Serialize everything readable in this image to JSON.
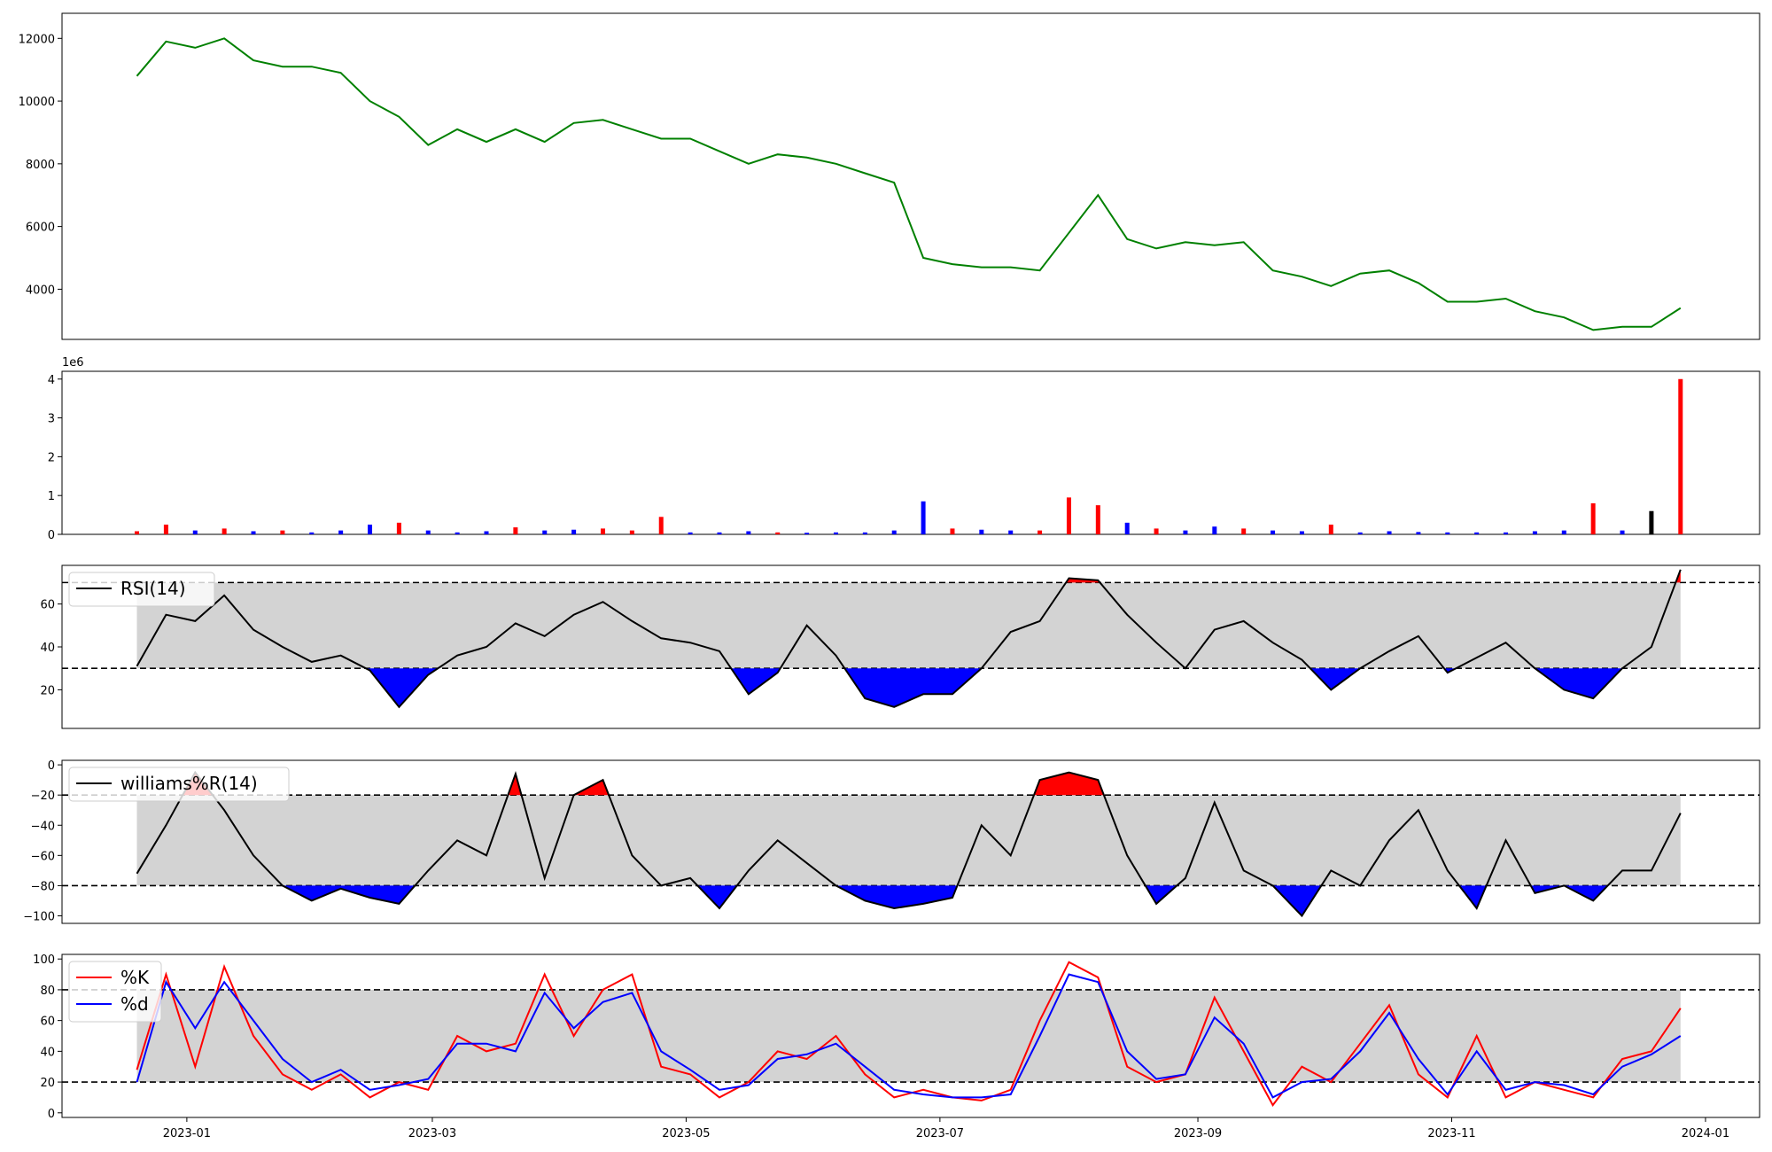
{
  "chart_data": {
    "type": "multi-panel technical chart",
    "x_axis": {
      "tick_labels": [
        "2023-01",
        "2023-03",
        "2023-05",
        "2023-07",
        "2023-09",
        "2023-11",
        "2024-01"
      ],
      "tick_dates": [
        "2023-01-01",
        "2023-03-01",
        "2023-05-01",
        "2023-07-01",
        "2023-09-01",
        "2023-11-01",
        "2024-01-01"
      ],
      "range": [
        "2022-12-02",
        "2024-01-14"
      ]
    },
    "dates": [
      "2022-12-20",
      "2022-12-27",
      "2023-01-03",
      "2023-01-10",
      "2023-01-17",
      "2023-01-24",
      "2023-01-31",
      "2023-02-07",
      "2023-02-14",
      "2023-02-21",
      "2023-02-28",
      "2023-03-07",
      "2023-03-14",
      "2023-03-21",
      "2023-03-28",
      "2023-04-04",
      "2023-04-11",
      "2023-04-18",
      "2023-04-25",
      "2023-05-02",
      "2023-05-09",
      "2023-05-16",
      "2023-05-23",
      "2023-05-30",
      "2023-06-06",
      "2023-06-13",
      "2023-06-20",
      "2023-06-27",
      "2023-07-04",
      "2023-07-11",
      "2023-07-18",
      "2023-07-25",
      "2023-08-01",
      "2023-08-08",
      "2023-08-15",
      "2023-08-22",
      "2023-08-29",
      "2023-09-05",
      "2023-09-12",
      "2023-09-19",
      "2023-09-26",
      "2023-10-03",
      "2023-10-10",
      "2023-10-17",
      "2023-10-24",
      "2023-10-31",
      "2023-11-07",
      "2023-11-14",
      "2023-11-21",
      "2023-11-28",
      "2023-12-05",
      "2023-12-12",
      "2023-12-19",
      "2023-12-26"
    ],
    "panels": [
      {
        "name": "price",
        "line_color": "#008000",
        "y_ticks": [
          4000,
          6000,
          8000,
          10000,
          12000
        ],
        "ylim": [
          2400,
          12800
        ],
        "values": [
          10800,
          11900,
          11700,
          12000,
          11300,
          11100,
          11100,
          10900,
          10000,
          9500,
          8600,
          9100,
          8700,
          9100,
          8700,
          9300,
          9400,
          9100,
          8800,
          8800,
          8400,
          8000,
          8300,
          8200,
          8000,
          7700,
          7400,
          5000,
          4800,
          4700,
          4700,
          4600,
          5800,
          7000,
          5600,
          5300,
          5500,
          5400,
          5500,
          4600,
          4400,
          4100,
          4500,
          4600,
          4200,
          3600,
          3600,
          3700,
          3300,
          3100,
          2700,
          2800,
          2800,
          3400
        ]
      },
      {
        "name": "volume",
        "type": "bar",
        "offset_label": "1e6",
        "y_ticks": [
          0,
          1,
          2,
          3,
          4
        ],
        "ylim": [
          0,
          4.2
        ],
        "colors": {
          "up": "#ff0000",
          "down": "#0000ff",
          "flat": "#000000"
        },
        "values": [
          0.08,
          0.25,
          0.1,
          0.15,
          0.08,
          0.1,
          0.05,
          0.1,
          0.25,
          0.3,
          0.1,
          0.05,
          0.08,
          0.18,
          0.1,
          0.12,
          0.15,
          0.1,
          0.45,
          0.05,
          0.05,
          0.08,
          0.05,
          0.04,
          0.05,
          0.05,
          0.1,
          0.85,
          0.15,
          0.12,
          0.1,
          0.1,
          0.95,
          0.75,
          0.3,
          0.15,
          0.1,
          0.2,
          0.15,
          0.1,
          0.08,
          0.25,
          0.05,
          0.08,
          0.06,
          0.05,
          0.05,
          0.05,
          0.08,
          0.1,
          0.8,
          0.1,
          0.6,
          4.0
        ],
        "directions": [
          "up",
          "up",
          "down",
          "up",
          "down",
          "up",
          "down",
          "down",
          "down",
          "up",
          "down",
          "down",
          "down",
          "up",
          "down",
          "down",
          "up",
          "up",
          "up",
          "down",
          "down",
          "down",
          "up",
          "down",
          "down",
          "down",
          "down",
          "down",
          "up",
          "down",
          "down",
          "up",
          "up",
          "up",
          "down",
          "up",
          "down",
          "down",
          "up",
          "down",
          "down",
          "up",
          "down",
          "down",
          "down",
          "down",
          "down",
          "down",
          "down",
          "down",
          "up",
          "down",
          "flat",
          "up"
        ]
      },
      {
        "name": "rsi",
        "legend": [
          "RSI(14)"
        ],
        "y_ticks": [
          20,
          40,
          60
        ],
        "ylim": [
          2,
          78
        ],
        "upper": 70,
        "lower": 30,
        "values": [
          31,
          55,
          52,
          64,
          48,
          40,
          33,
          36,
          29,
          12,
          27,
          36,
          40,
          51,
          45,
          55,
          61,
          52,
          44,
          42,
          38,
          18,
          28,
          50,
          36,
          16,
          12,
          18,
          18,
          30,
          47,
          52,
          72,
          71,
          55,
          42,
          30,
          48,
          52,
          42,
          34,
          20,
          30,
          38,
          45,
          28,
          35,
          42,
          30,
          20,
          16,
          30,
          40,
          76
        ]
      },
      {
        "name": "williams",
        "legend": [
          "williams%R(14)"
        ],
        "y_ticks": [
          0,
          -20,
          -40,
          -60,
          -80,
          -100
        ],
        "ylim": [
          -105,
          3
        ],
        "upper": -20,
        "lower": -80,
        "values": [
          -72,
          -40,
          -5,
          -30,
          -60,
          -80,
          -90,
          -82,
          -88,
          -92,
          -70,
          -50,
          -60,
          -6,
          -75,
          -20,
          -10,
          -60,
          -80,
          -75,
          -95,
          -70,
          -50,
          -65,
          -80,
          -90,
          -95,
          -92,
          -88,
          -40,
          -60,
          -10,
          -5,
          -10,
          -60,
          -92,
          -75,
          -25,
          -70,
          -80,
          -100,
          -70,
          -80,
          -50,
          -30,
          -70,
          -95,
          -50,
          -85,
          -80,
          -90,
          -70,
          -70,
          -32
        ]
      },
      {
        "name": "stochastic",
        "legend": [
          "%K",
          "%d"
        ],
        "legend_colors": [
          "#ff0000",
          "#0000ff"
        ],
        "y_ticks": [
          0,
          20,
          40,
          60,
          80,
          100
        ],
        "ylim": [
          -3,
          103
        ],
        "upper": 80,
        "lower": 20,
        "series": [
          {
            "name": "%K",
            "color": "#ff0000",
            "values": [
              28,
              90,
              30,
              95,
              50,
              25,
              15,
              25,
              10,
              20,
              15,
              50,
              40,
              45,
              90,
              50,
              80,
              90,
              30,
              25,
              10,
              20,
              40,
              35,
              50,
              25,
              10,
              15,
              10,
              8,
              15,
              60,
              98,
              88,
              30,
              20,
              25,
              75,
              40,
              5,
              30,
              20,
              45,
              70,
              25,
              10,
              50,
              10,
              20,
              15,
              10,
              35,
              40,
              68
            ]
          },
          {
            "name": "%d",
            "color": "#0000ff",
            "values": [
              20,
              85,
              55,
              85,
              60,
              35,
              20,
              28,
              15,
              18,
              22,
              45,
              45,
              40,
              78,
              55,
              72,
              78,
              40,
              28,
              15,
              18,
              35,
              38,
              45,
              30,
              15,
              12,
              10,
              10,
              12,
              50,
              90,
              85,
              40,
              22,
              25,
              62,
              45,
              10,
              20,
              22,
              40,
              65,
              35,
              12,
              40,
              15,
              20,
              18,
              12,
              30,
              38,
              50
            ]
          }
        ]
      }
    ]
  }
}
